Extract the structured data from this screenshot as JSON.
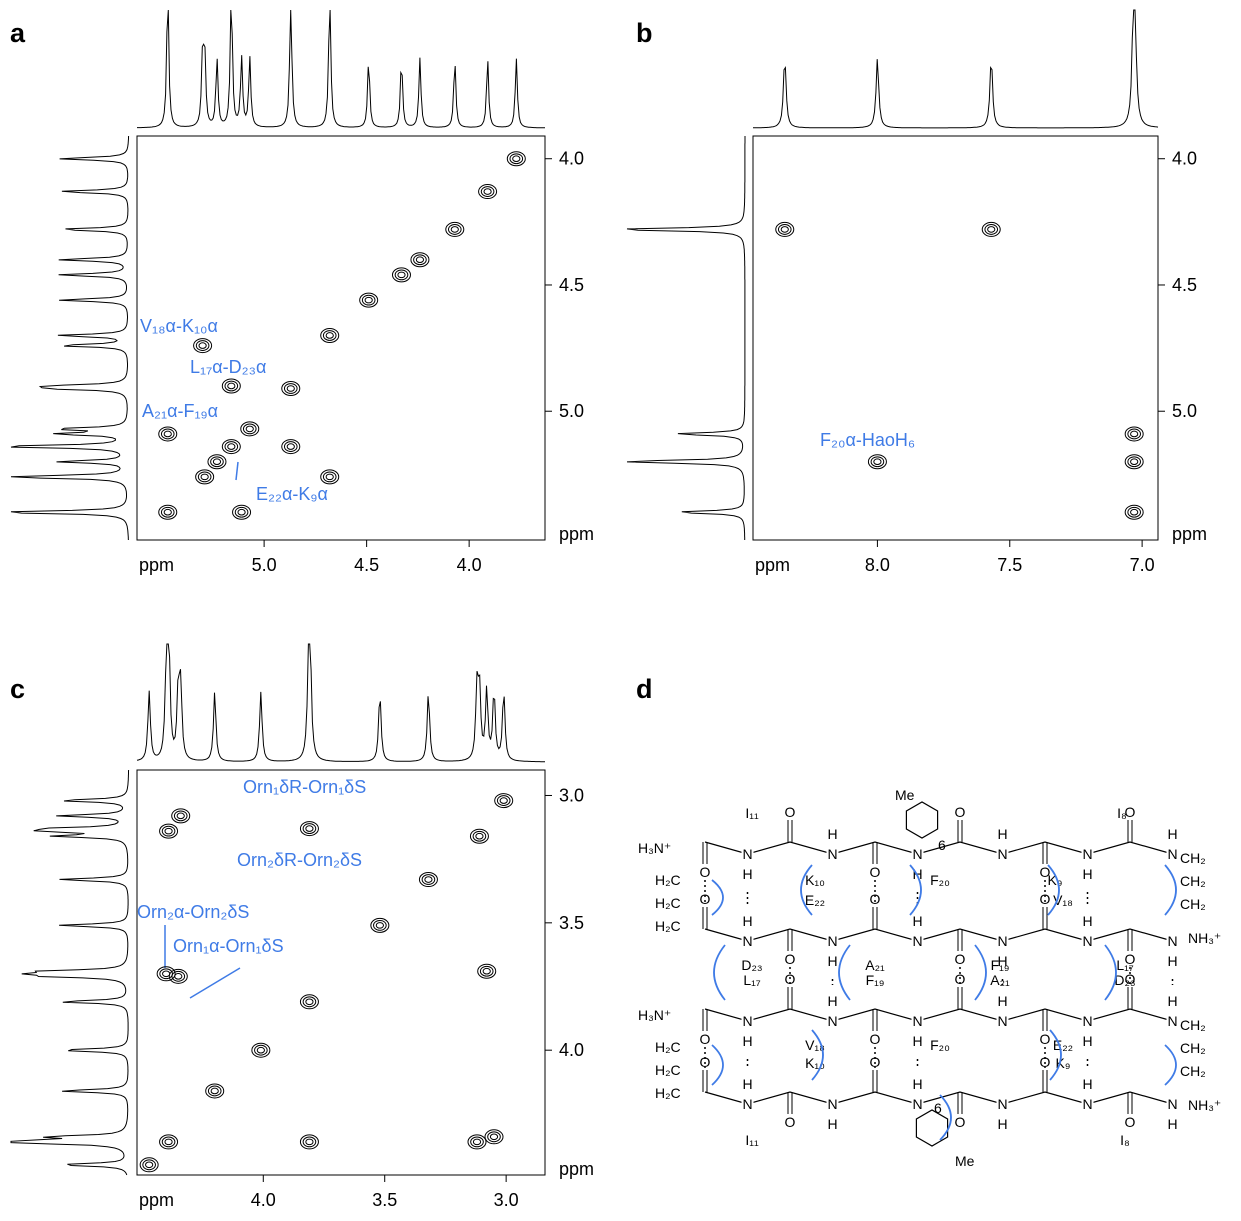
{
  "panel_labels": [
    "a",
    "b",
    "c",
    "d"
  ],
  "chart_data": [
    {
      "type": "contour",
      "x_label": "ppm",
      "y_label": "ppm",
      "xlim": [
        5.62,
        3.63
      ],
      "ylim": [
        3.91,
        5.51
      ],
      "xticks": [
        {
          "value": 5,
          "label": "5.0"
        },
        {
          "value": 4.5,
          "label": "4.5"
        },
        {
          "value": 4,
          "label": "4.0"
        }
      ],
      "yticks": [
        {
          "value": 4,
          "label": "4.0"
        },
        {
          "value": 4.5,
          "label": "4.5"
        },
        {
          "value": 5,
          "label": "5.0"
        }
      ],
      "peaks": {
        "x": [
          3.77,
          3.91,
          4.07,
          4.24,
          4.33,
          4.49,
          4.68,
          5.3,
          5.16,
          4.87,
          5.47,
          4.87,
          5.16,
          5.23,
          5.29,
          5.07,
          4.68,
          5.47,
          5.11
        ],
        "y": [
          4.0,
          4.13,
          4.28,
          4.4,
          4.46,
          4.56,
          4.7,
          4.74,
          4.9,
          4.91,
          5.09,
          5.14,
          5.14,
          5.2,
          5.26,
          5.07,
          5.26,
          5.4,
          5.4
        ]
      },
      "annotations": [
        "V₁₈α-K₁₀α",
        "L₁₇α-D₂₃α",
        "A₂₁α-F₁₉α",
        "E₂₂α-K₉α"
      ]
    },
    {
      "type": "contour",
      "x_label": "ppm",
      "y_label": "ppm",
      "xlim": [
        8.47,
        6.94
      ],
      "ylim": [
        3.91,
        5.51
      ],
      "xticks": [
        {
          "value": 8,
          "label": "8.0"
        },
        {
          "value": 7.5,
          "label": "7.5"
        },
        {
          "value": 7,
          "label": "7.0"
        }
      ],
      "yticks": [
        {
          "value": 4,
          "label": "4.0"
        },
        {
          "value": 4.5,
          "label": "4.5"
        },
        {
          "value": 5,
          "label": "5.0"
        }
      ],
      "peaks": {
        "x": [
          8.35,
          7.57,
          8.0,
          7.03,
          7.03,
          7.03
        ],
        "y": [
          4.28,
          4.28,
          5.2,
          5.09,
          5.2,
          5.4
        ]
      },
      "annotations": [
        "F₂₀α-HaoH₆"
      ]
    },
    {
      "type": "contour",
      "x_label": "ppm",
      "y_label": "ppm",
      "xlim": [
        4.52,
        2.84
      ],
      "ylim": [
        2.9,
        4.49
      ],
      "xticks": [
        {
          "value": 4,
          "label": "4.0"
        },
        {
          "value": 3.5,
          "label": "3.5"
        },
        {
          "value": 3,
          "label": "3.0"
        }
      ],
      "yticks": [
        {
          "value": 3,
          "label": "3.0"
        },
        {
          "value": 3.5,
          "label": "3.5"
        },
        {
          "value": 4,
          "label": "4.0"
        }
      ],
      "peaks": {
        "x": [
          3.81,
          3.01,
          3.11,
          3.52,
          3.81,
          3.08,
          4.4,
          4.35,
          4.39,
          4.34,
          3.81,
          3.12,
          3.05,
          4.2,
          4.39,
          4.47,
          4.01,
          3.32
        ],
        "y": [
          3.13,
          3.02,
          3.16,
          3.51,
          3.81,
          3.69,
          3.7,
          3.71,
          3.14,
          3.08,
          4.36,
          4.36,
          4.34,
          4.16,
          4.36,
          4.45,
          4.0,
          3.33
        ]
      },
      "annotations": [
        "Orn₁δR-Orn₁δS",
        "Orn₂δR-Orn₂δS",
        "Orn₂α-Orn₂δS",
        "Orn₁α-Orn₁δS"
      ]
    }
  ],
  "structure": {
    "atoms": {
      "O": "O",
      "N": "N",
      "H": "H"
    },
    "termini": {
      "ammonium_left": "H₃N⁺",
      "ammonium_right": "NH₃⁺",
      "methylene_left": "H₂C",
      "methylene_right": "CH₂"
    },
    "methoxy": "Me",
    "ring_position": "6",
    "residues": [
      [
        "I₁₁",
        "K₁₀",
        "F₂₀",
        "K₉",
        "I₈"
      ],
      [
        "E₂₂",
        "D₂₃",
        "A₂₁",
        "F₁₉",
        "V₁₈",
        "L₁₇"
      ],
      [
        "L₁₇",
        "F₁₉",
        "A₂₁",
        "D₂₃",
        "V₁₈",
        "F₂₀",
        "E₂₂"
      ],
      [
        "K₁₀",
        "K₉",
        "I₁₁",
        "I₈"
      ]
    ]
  }
}
